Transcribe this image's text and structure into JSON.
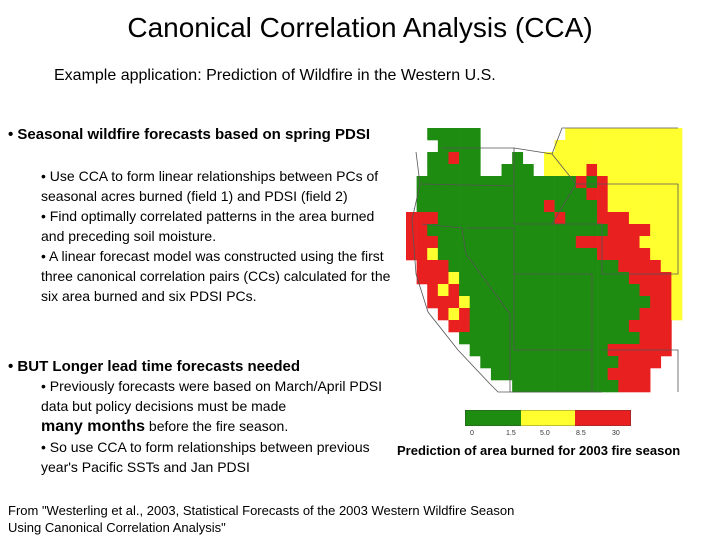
{
  "slide": {
    "title": "Canonical Correlation Analysis (CCA)",
    "subtitle": "Example application: Prediction of Wildfire in the Western U.S."
  },
  "bullets": {
    "main1": "• Seasonal wildfire forecasts based on spring PDSI",
    "sub1": [
      "• Use CCA to form linear relationships between PCs of seasonal acres burned (field 1) and PDSI (field 2)",
      "• Find optimally correlated patterns in the area burned and preceding soil moisture.",
      "• A linear forecast model was constructed using the first three canonical correlation pairs (CCs) calculated for the six area burned and six PDSI PCs."
    ],
    "main2": "• BUT Longer lead time forecasts needed",
    "sub2_a": "• Previously forecasts were based on March/April PDSI data but policy decisions must be made",
    "sub2_a_emph": "many months",
    "sub2_a_tail": " before the fire season.",
    "sub2_b": "• So use CCA to form relationships between previous year's Pacific SSTs and Jan PDSI"
  },
  "figure": {
    "caption": "Prediction of area burned for 2003 fire season",
    "legend_ticks": [
      "0",
      "1.5",
      "5.0",
      "8.5",
      "30"
    ],
    "colors": {
      "green": "#1e8c10",
      "yellow": "#ffff30",
      "red": "#e82020",
      "white": "#ffffff"
    }
  },
  "reference": {
    "line1": "From \"Westerling et al., 2003, Statistical Forecasts of the 2003 Western Wildfire Season",
    "line2": "Using Canonical Correlation Analysis\""
  }
}
